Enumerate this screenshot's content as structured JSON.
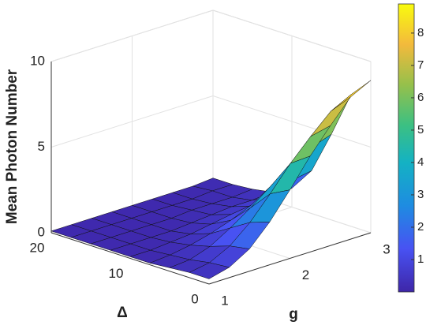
{
  "chart_data": {
    "type": "surface",
    "zlabel": "Mean Photon Number",
    "ylabel": "Δ",
    "xlabel": "g",
    "x": [
      1,
      1.25,
      1.5,
      1.75,
      2,
      2.25,
      2.5,
      2.75,
      3
    ],
    "y": [
      0,
      2.5,
      5,
      7.5,
      10,
      12.5,
      15,
      17.5,
      20
    ],
    "z": [
      [
        0.3,
        0.6,
        1.3,
        2.5,
        4.0,
        5.6,
        7.0,
        8.3,
        8.9
      ],
      [
        0.3,
        0.5,
        1.1,
        2.1,
        3.4,
        4.8,
        6.0,
        7.1,
        7.7
      ],
      [
        0.2,
        0.3,
        0.7,
        1.4,
        2.2,
        3.1,
        3.9,
        4.6,
        5.0
      ],
      [
        0.1,
        0.2,
        0.4,
        0.7,
        1.1,
        1.6,
        2.0,
        2.3,
        2.5
      ],
      [
        0.1,
        0.1,
        0.2,
        0.3,
        0.5,
        0.7,
        0.8,
        1.0,
        1.1
      ],
      [
        0.1,
        0.1,
        0.1,
        0.1,
        0.2,
        0.3,
        0.4,
        0.4,
        0.5
      ],
      [
        0.1,
        0.1,
        0.1,
        0.1,
        0.1,
        0.2,
        0.2,
        0.2,
        0.3
      ],
      [
        0.1,
        0.1,
        0.1,
        0.1,
        0.1,
        0.1,
        0.1,
        0.2,
        0.2
      ],
      [
        0.1,
        0.1,
        0.1,
        0.1,
        0.1,
        0.1,
        0.1,
        0.1,
        0.2
      ]
    ],
    "xlim": [
      1,
      3
    ],
    "xticks": [
      1,
      2,
      3
    ],
    "ylim": [
      0,
      20
    ],
    "yticks": [
      0,
      10,
      20
    ],
    "zlim": [
      0,
      10
    ],
    "zticks": [
      0,
      5,
      10
    ],
    "colormap": "parula",
    "clim": [
      0,
      8.9
    ],
    "cticks": [
      1,
      2,
      3,
      4,
      5,
      6,
      7,
      8
    ],
    "grid": true
  }
}
